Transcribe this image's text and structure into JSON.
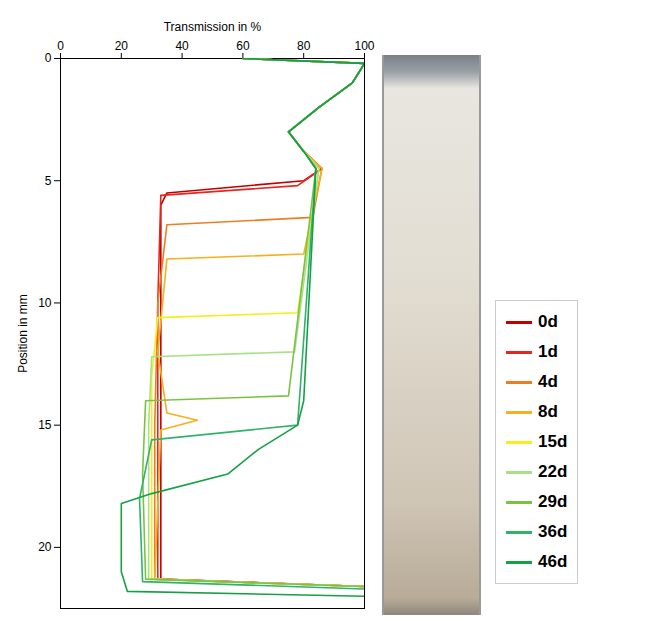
{
  "chart_data": {
    "type": "line",
    "orientation": "horizontal",
    "x_label": "Transmission in %",
    "y_label": "Position in mm",
    "xlim": [
      0,
      100
    ],
    "xticks": [
      0,
      20,
      40,
      60,
      80,
      100
    ],
    "ylim": [
      0,
      22.5
    ],
    "yticks": [
      0,
      5,
      10,
      15,
      20
    ],
    "grid": false,
    "legend": "right",
    "series": [
      {
        "name": "0d",
        "color": "#c00000",
        "position": [
          0,
          0.2,
          1,
          2,
          3,
          3.8,
          4.5,
          5,
          5.5,
          6,
          10,
          15,
          21.3,
          21.6
        ],
        "values": [
          60,
          100,
          96,
          85,
          75,
          80,
          86,
          80,
          35,
          33,
          33,
          33,
          33,
          100
        ]
      },
      {
        "name": "1d",
        "color": "#e8251c",
        "position": [
          0,
          0.2,
          1,
          2,
          3,
          3.8,
          4.5,
          5.2,
          5.6,
          10,
          15,
          21.3,
          21.6
        ],
        "values": [
          60,
          100,
          96,
          85,
          75,
          80,
          86,
          78,
          33,
          32,
          32,
          32,
          100
        ]
      },
      {
        "name": "4d",
        "color": "#ee7d22",
        "position": [
          0,
          0.2,
          1,
          2,
          3,
          3.8,
          4.5,
          6.5,
          6.8,
          10,
          15,
          21.3,
          21.6
        ],
        "values": [
          60,
          100,
          96,
          85,
          75,
          80,
          86,
          83,
          35,
          32,
          31,
          31,
          100
        ]
      },
      {
        "name": "8d",
        "color": "#f5b01e",
        "position": [
          0,
          0.2,
          1,
          2,
          3,
          3.8,
          4.5,
          8,
          8.2,
          12,
          14.5,
          14.8,
          15.2,
          21.3,
          21.6
        ],
        "values": [
          60,
          100,
          96,
          85,
          75,
          80,
          86,
          80,
          35,
          32,
          35,
          45,
          33,
          31,
          100
        ]
      },
      {
        "name": "15d",
        "color": "#f2ef1a",
        "position": [
          0,
          0.2,
          1,
          2,
          3,
          3.8,
          4.5,
          10.4,
          10.6,
          13,
          21.3,
          21.6
        ],
        "values": [
          60,
          100,
          96,
          85,
          75,
          80,
          85,
          78,
          32,
          30,
          30,
          100
        ]
      },
      {
        "name": "22d",
        "color": "#a8e08a",
        "position": [
          0,
          0.2,
          1,
          2,
          3,
          3.8,
          4.5,
          12,
          12.2,
          15,
          21.3,
          21.6
        ],
        "values": [
          60,
          100,
          96,
          85,
          75,
          80,
          85,
          77,
          30,
          29,
          29,
          100
        ]
      },
      {
        "name": "29d",
        "color": "#7cc242",
        "position": [
          0,
          0.2,
          1,
          2,
          3,
          3.8,
          4.5,
          13.8,
          14,
          17,
          21.3,
          21.6
        ],
        "values": [
          60,
          100,
          96,
          85,
          75,
          80,
          84,
          75,
          28,
          27,
          28,
          100
        ]
      },
      {
        "name": "36d",
        "color": "#2fb36a",
        "position": [
          0,
          0.2,
          1,
          2,
          3,
          3.8,
          4.5,
          15,
          15.6,
          18,
          21.4,
          21.7
        ],
        "values": [
          60,
          100,
          96,
          85,
          75,
          80,
          84,
          78,
          30,
          26,
          27,
          100
        ]
      },
      {
        "name": "46d",
        "color": "#15a046",
        "position": [
          0,
          0.2,
          1,
          2,
          3,
          3.8,
          4.5,
          14,
          15,
          16,
          17,
          17.8,
          18.2,
          21,
          21.8,
          22
        ],
        "values": [
          60,
          100,
          96,
          85,
          75,
          80,
          84,
          80,
          78,
          65,
          55,
          30,
          20,
          20,
          22,
          100
        ]
      }
    ]
  }
}
